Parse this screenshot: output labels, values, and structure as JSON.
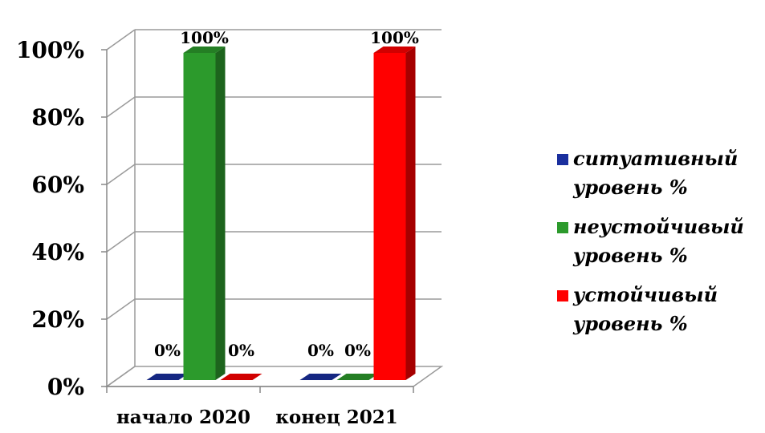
{
  "chart_data": {
    "type": "bar",
    "title": "",
    "xlabel": "",
    "ylabel": "",
    "categories": [
      "начало 2020",
      "конец 2021"
    ],
    "ylim": [
      0,
      100
    ],
    "yticks": [
      0,
      20,
      40,
      60,
      80,
      100
    ],
    "ytick_labels": [
      "0%",
      "20%",
      "40%",
      "60%",
      "80%",
      "100%"
    ],
    "grid": true,
    "legend_position": "right",
    "series": [
      {
        "name": "ситуативный уровень %",
        "values": [
          0,
          0
        ],
        "data_labels": [
          "0%",
          "0%"
        ],
        "color": "#1a2f9e"
      },
      {
        "name": "неустойчивый уровень %",
        "values": [
          100,
          0
        ],
        "data_labels": [
          "100%",
          "0%"
        ],
        "color": "#2c9a2c"
      },
      {
        "name": "устойчивый уровень %",
        "values": [
          0,
          100
        ],
        "data_labels": [
          "0%",
          "100%"
        ],
        "color": "#ff0000"
      }
    ]
  }
}
